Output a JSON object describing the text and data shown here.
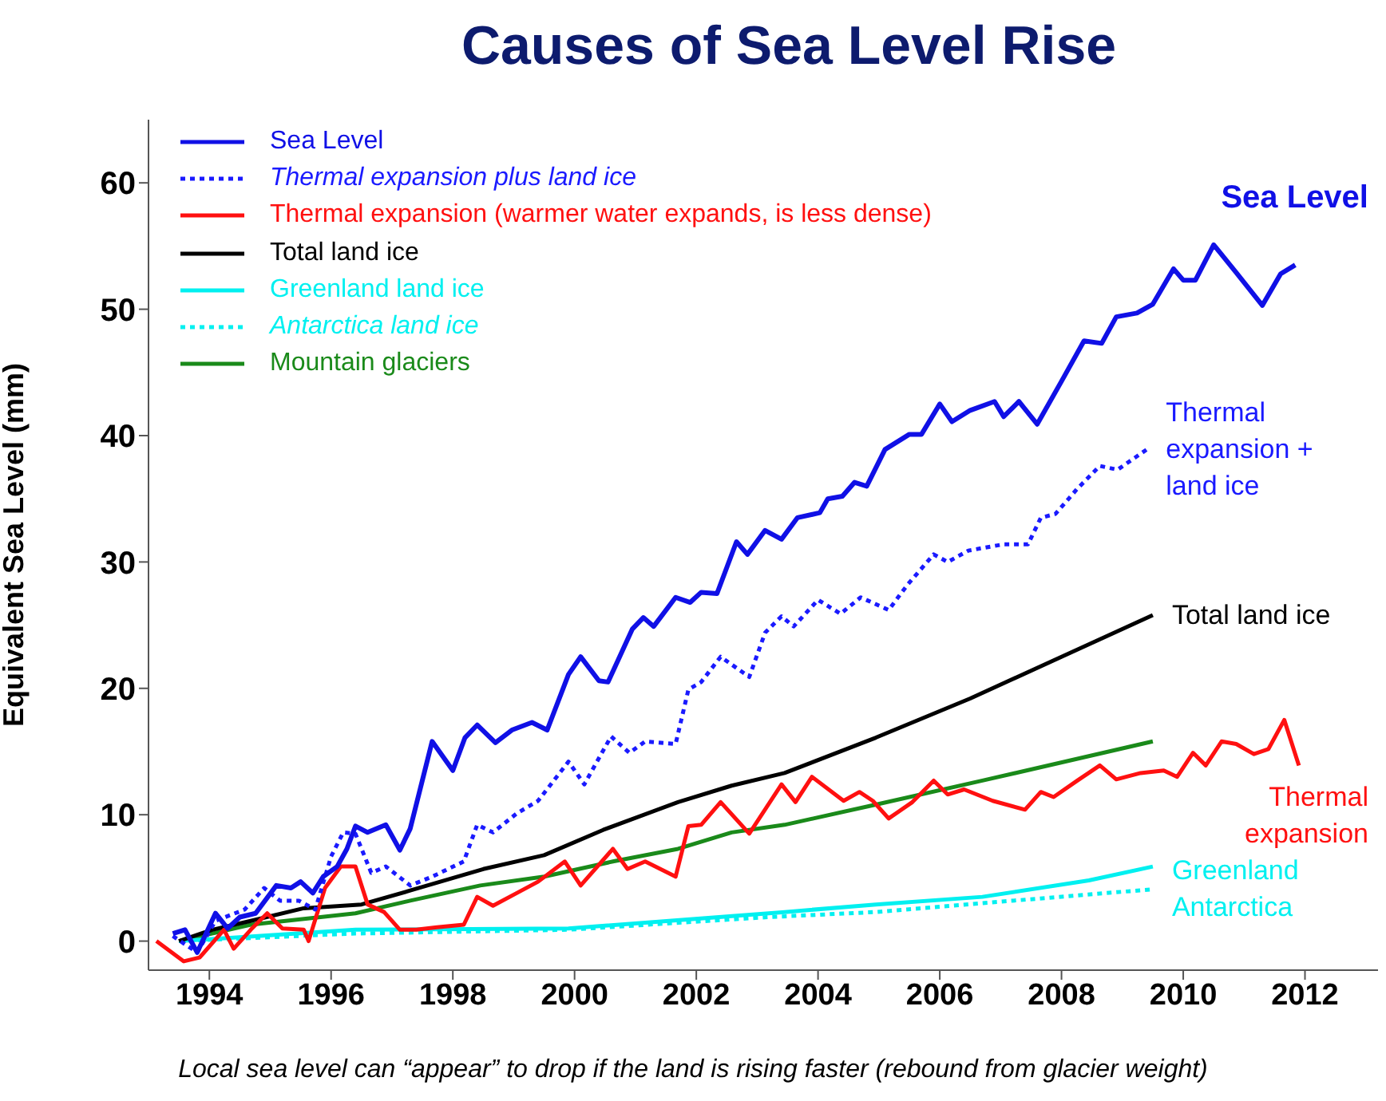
{
  "chart_data": {
    "type": "line",
    "title": "Causes of Sea Level Rise",
    "ylabel": "Equivalent Sea Level (mm)",
    "xlim": [
      1993,
      2013.2
    ],
    "xticks": [
      1994,
      1996,
      1998,
      2000,
      2002,
      2004,
      2006,
      2008,
      2010,
      2012
    ],
    "ylim": [
      -2.3,
      65
    ],
    "yticks": [
      0,
      10,
      20,
      30,
      40,
      50,
      60
    ],
    "grid": false,
    "legend": "top left",
    "marker": "none",
    "series": [
      {
        "name": "Sea Level",
        "color": "#1010e6",
        "x": [
          1993.4,
          1993.6,
          1993.8,
          1994.1,
          1994.3,
          1994.5,
          1994.76,
          1995.1,
          1995.34,
          1995.5,
          1995.7,
          1995.87,
          1996.1,
          1996.26,
          1996.4,
          1996.6,
          1996.9,
          1997.13,
          1997.3,
          1997.66,
          1998.0,
          1998.2,
          1998.4,
          1998.7,
          1998.97,
          1999.3,
          1999.55,
          1999.9,
          2000.1,
          2000.4,
          2000.55,
          2000.74,
          2000.95,
          2001.13,
          2001.3,
          2001.66,
          2001.9,
          2002.08,
          2002.34,
          2002.66,
          2002.84,
          2003.13,
          2003.4,
          2003.66,
          2004.03,
          2004.16,
          2004.4,
          2004.6,
          2004.8,
          2005.1,
          2005.5,
          2005.7,
          2006.0,
          2006.2,
          2006.5,
          2006.9,
          2007.05,
          2007.3,
          2007.6,
          2008.0,
          2008.37,
          2008.66,
          2008.9,
          2009.24,
          2009.5,
          2009.84,
          2010.0,
          2010.2,
          2010.5,
          2010.87,
          2011.3,
          2011.6,
          2011.84
        ],
        "values": [
          0.6,
          0.9,
          -0.9,
          2.2,
          1,
          1.9,
          2.2,
          4.4,
          4.2,
          4.7,
          3.8,
          5.1,
          5.9,
          7.3,
          9.1,
          8.6,
          9.2,
          7.2,
          8.9,
          15.8,
          13.5,
          16.1,
          17.1,
          15.7,
          16.7,
          17.3,
          16.7,
          21.1,
          22.5,
          20.6,
          20.5,
          22.5,
          24.7,
          25.6,
          24.9,
          27.2,
          26.8,
          27.6,
          27.5,
          31.6,
          30.6,
          32.5,
          31.8,
          33.5,
          33.9,
          35,
          35.2,
          36.3,
          36,
          38.9,
          40.1,
          40.1,
          42.5,
          41.1,
          42,
          42.7,
          41.5,
          42.7,
          40.9,
          44.3,
          47.5,
          47.3,
          49.4,
          49.7,
          50.4,
          53.2,
          52.3,
          52.3,
          55.1,
          52.9,
          50.3,
          52.8,
          53.5
        ]
      },
      {
        "name": "Thermal expansion plus land ice",
        "color": "#1a1aff",
        "line_style": "dotted",
        "x": [
          1993.4,
          1993.8,
          1994.1,
          1994.58,
          1994.9,
          1995.16,
          1995.47,
          1995.74,
          1996.0,
          1996.2,
          1996.4,
          1996.66,
          1996.9,
          1997.3,
          1997.66,
          1998.18,
          1998.4,
          1998.66,
          1999.05,
          1999.4,
          1999.9,
          2000.16,
          2000.6,
          2000.9,
          2001.16,
          2001.66,
          2001.87,
          2002.08,
          2002.4,
          2002.87,
          2003.13,
          2003.4,
          2003.6,
          2004.0,
          2004.37,
          2004.7,
          2005.16,
          2005.47,
          2005.9,
          2006.13,
          2006.47,
          2007.05,
          2007.45,
          2007.66,
          2007.9,
          2008.26,
          2008.63,
          2008.92,
          2009.4
        ],
        "values": [
          0.4,
          -0.9,
          1.6,
          2.5,
          4.2,
          3.2,
          3.2,
          2.5,
          6.7,
          8.6,
          8.5,
          5.4,
          5.9,
          4.4,
          5.1,
          6.3,
          9.2,
          8.6,
          10.1,
          11.1,
          14.2,
          12.4,
          16.2,
          14.9,
          15.8,
          15.6,
          19.9,
          20.5,
          22.5,
          20.9,
          24.4,
          25.7,
          24.9,
          27,
          25.9,
          27.2,
          26.2,
          28.2,
          30.6,
          30,
          30.9,
          31.4,
          31.4,
          33.5,
          33.8,
          35.8,
          37.6,
          37.3,
          38.9
        ]
      },
      {
        "name": "Thermal expansion (warmer water expands, is less dense)",
        "color": "#ff1010",
        "x": [
          1993.13,
          1993.58,
          1993.84,
          1994.24,
          1994.4,
          1994.68,
          1994.95,
          1995.2,
          1995.55,
          1995.63,
          1995.9,
          1996.16,
          1996.4,
          1996.6,
          1996.87,
          1997.13,
          1997.4,
          1997.74,
          1998.18,
          1998.4,
          1998.66,
          1999.05,
          1999.4,
          1999.84,
          2000.1,
          2000.63,
          2000.87,
          2001.16,
          2001.66,
          2001.87,
          2002.08,
          2002.4,
          2002.87,
          2003.4,
          2003.63,
          2003.9,
          2004.42,
          2004.68,
          2004.9,
          2005.16,
          2005.55,
          2005.9,
          2006.13,
          2006.4,
          2006.87,
          2007.4,
          2007.66,
          2007.87,
          2008.26,
          2008.63,
          2008.9,
          2009.3,
          2009.68,
          2009.9,
          2010.16,
          2010.37,
          2010.63,
          2010.87,
          2011.16,
          2011.4,
          2011.66,
          2011.9
        ],
        "values": [
          0,
          -1.6,
          -1.3,
          0.9,
          -0.6,
          0.9,
          2.2,
          1,
          0.9,
          0,
          4.2,
          5.9,
          5.9,
          2.9,
          2.3,
          0.9,
          0.9,
          1.1,
          1.3,
          3.5,
          2.8,
          3.8,
          4.7,
          6.3,
          4.4,
          7.3,
          5.7,
          6.3,
          5.1,
          9.1,
          9.2,
          11,
          8.5,
          12.4,
          11,
          13,
          11.1,
          11.8,
          11.1,
          9.7,
          11,
          12.7,
          11.6,
          12,
          11.1,
          10.4,
          11.8,
          11.4,
          12.7,
          13.9,
          12.8,
          13.3,
          13.5,
          13,
          14.9,
          13.9,
          15.8,
          15.6,
          14.8,
          15.2,
          17.5,
          13.9
        ]
      },
      {
        "name": "Total land ice",
        "color": "#000000",
        "x": [
          1993.5,
          1994.05,
          1994.68,
          1995.55,
          1996.5,
          1997.3,
          1998.5,
          1999.5,
          2000.47,
          2001.7,
          2002.58,
          2003.45,
          2004.95,
          2006.5,
          2008.0,
          2009.5
        ],
        "values": [
          0,
          0.9,
          1.6,
          2.6,
          2.9,
          4,
          5.7,
          6.8,
          8.8,
          11,
          12.3,
          13.3,
          16.1,
          19.2,
          22.5,
          25.8
        ]
      },
      {
        "name": "Greenland land ice",
        "color": "#00f0f0",
        "x": [
          1993.5,
          1996.4,
          1999.9,
          2003.45,
          2004.95,
          2006.7,
          2008.45,
          2009.5
        ],
        "values": [
          0,
          0.9,
          1,
          2.3,
          2.9,
          3.5,
          4.8,
          5.9
        ]
      },
      {
        "name": "Antarctica land ice",
        "color": "#00f0f0",
        "line_style": "dotted",
        "x": [
          1993.5,
          1996.4,
          1999.9,
          2003.18,
          2004.95,
          2006.7,
          2009.5
        ],
        "values": [
          0,
          0.6,
          0.9,
          1.9,
          2.3,
          3.0,
          4.1
        ]
      },
      {
        "name": "Mountain glaciers",
        "color": "#1a8a1a",
        "x": [
          1993.5,
          1994.68,
          1996.4,
          1997.3,
          1998.45,
          1999.5,
          2000.63,
          2001.7,
          2002.58,
          2003.45,
          2004.95,
          2006.7,
          2009.5
        ],
        "values": [
          0,
          1.3,
          2.2,
          3.2,
          4.4,
          5.1,
          6.3,
          7.3,
          8.6,
          9.2,
          10.8,
          12.7,
          15.8
        ]
      }
    ],
    "annotations": [
      {
        "text": "Sea Level",
        "x": 2011.84,
        "y": 53.5
      },
      {
        "text": "Thermal\nexpansion +\nland ice",
        "x": 2009.4,
        "y": 38.9
      },
      {
        "text": "Total land ice",
        "x": 2009.5,
        "y": 25.8
      },
      {
        "text": "Thermal\nexpansion",
        "x": 2011.9,
        "y": 13.9
      },
      {
        "text": "Greenland\nAntarctica",
        "x": 2009.5,
        "y": 4.1
      },
      "Local sea level can “appear” to drop if the land is rising faster (rebound from glacier weight)"
    ]
  }
}
